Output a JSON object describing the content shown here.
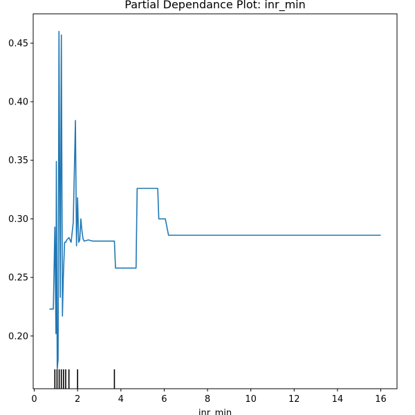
{
  "chart_data": {
    "type": "line",
    "title": "Partial Dependance Plot: inr_min",
    "xlabel": "inr_min",
    "ylabel": "",
    "xlim": [
      -0.05,
      16.75
    ],
    "ylim": [
      0.155,
      0.475
    ],
    "x_ticks": [
      0,
      2,
      4,
      6,
      8,
      10,
      12,
      14,
      16
    ],
    "y_ticks": [
      0.2,
      0.25,
      0.3,
      0.35,
      0.4,
      0.45
    ],
    "x_tick_labels": [
      "0",
      "2",
      "4",
      "6",
      "8",
      "10",
      "12",
      "14",
      "16"
    ],
    "y_tick_labels": [
      "0.20",
      "0.25",
      "0.30",
      "0.35",
      "0.40",
      "0.45"
    ],
    "grid": false,
    "line_color": "#1f77b4",
    "series": [
      {
        "x": [
          0.7,
          0.88,
          0.95,
          1.0,
          1.02,
          1.06,
          1.1,
          1.14,
          1.2,
          1.25,
          1.3,
          1.34,
          1.4,
          1.45,
          1.5,
          1.6,
          1.7,
          1.8,
          1.9,
          1.95,
          2.0,
          2.05,
          2.1,
          2.15,
          2.2,
          2.25,
          2.3,
          2.5,
          2.7,
          3.0,
          3.5,
          3.7,
          3.75,
          3.9,
          4.5,
          4.7,
          4.75,
          5.0,
          5.7,
          5.75,
          6.0,
          6.05,
          6.2,
          8.0,
          16.0
        ],
        "y": [
          0.223,
          0.223,
          0.293,
          0.202,
          0.349,
          0.172,
          0.18,
          0.46,
          0.233,
          0.457,
          0.217,
          0.25,
          0.28,
          0.28,
          0.282,
          0.284,
          0.28,
          0.297,
          0.384,
          0.277,
          0.318,
          0.28,
          0.282,
          0.3,
          0.29,
          0.283,
          0.281,
          0.282,
          0.281,
          0.281,
          0.281,
          0.281,
          0.258,
          0.258,
          0.258,
          0.258,
          0.326,
          0.326,
          0.326,
          0.3,
          0.3,
          0.3,
          0.286,
          0.286,
          0.286
        ]
      }
    ],
    "rug_x": [
      0.95,
      1.05,
      1.15,
      1.25,
      1.35,
      1.45,
      1.6,
      2.0,
      3.7
    ]
  }
}
